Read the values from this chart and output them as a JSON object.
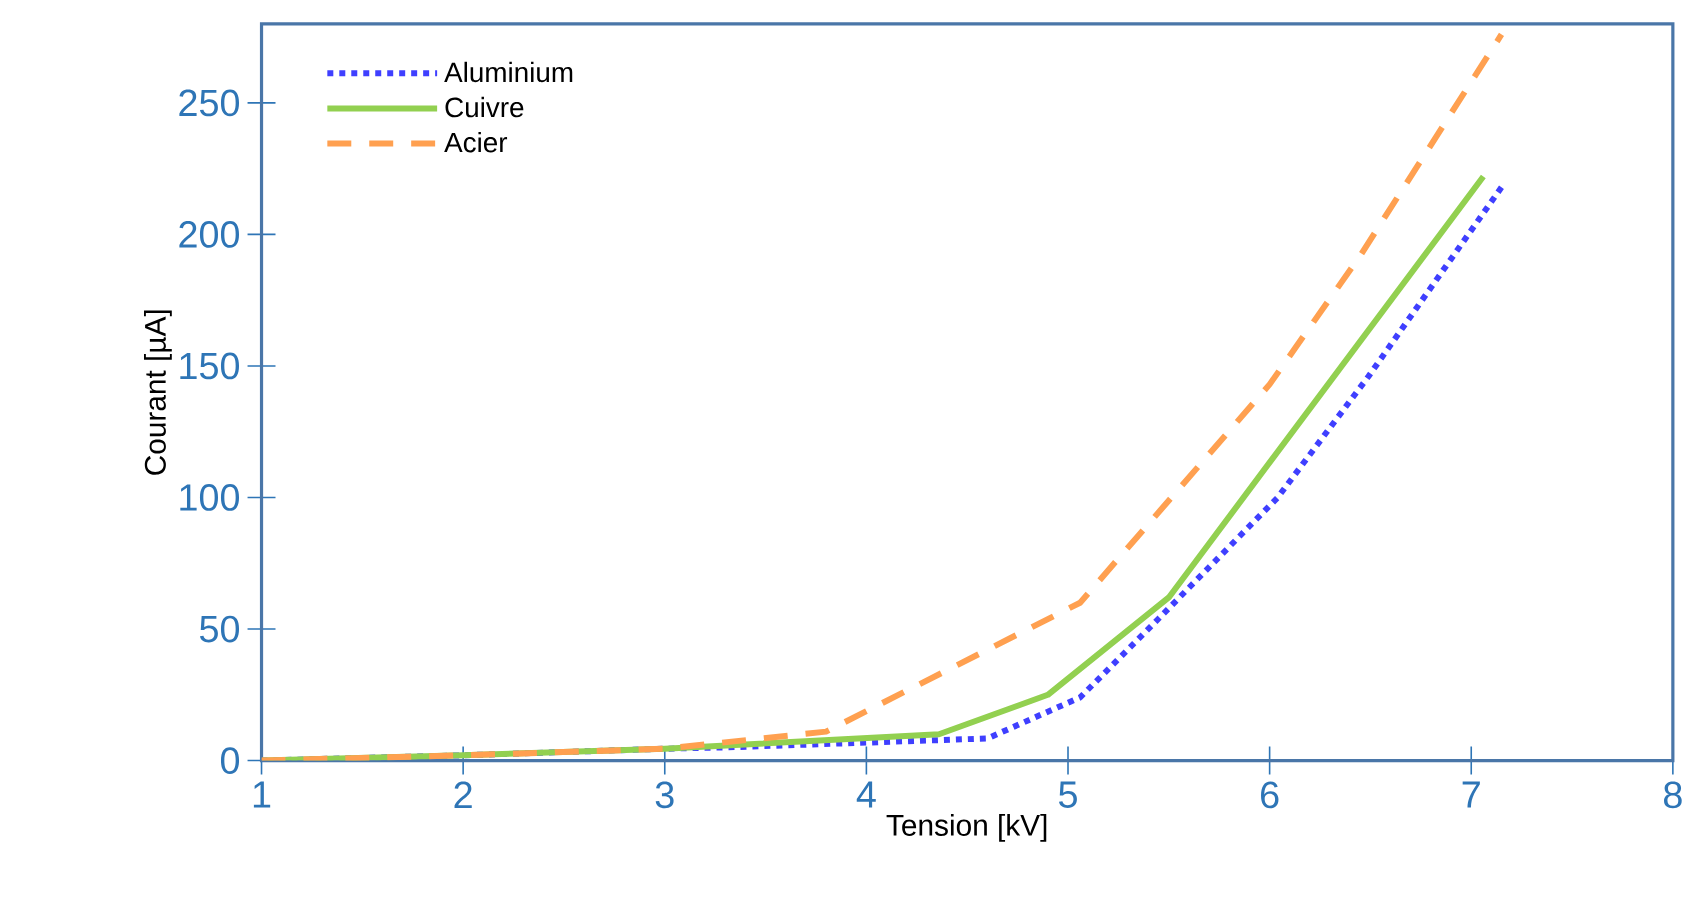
{
  "chart_data": {
    "type": "line",
    "xlabel": "Tension [kV]",
    "ylabel": "Courant [µA]",
    "xlim": [
      1,
      8
    ],
    "ylim": [
      0,
      280
    ],
    "xticks": [
      1,
      2,
      3,
      4,
      5,
      6,
      7,
      8
    ],
    "yticks": [
      0,
      50,
      100,
      150,
      200,
      250
    ],
    "grid": false,
    "legend": "top left",
    "marker": "none",
    "series": [
      {
        "name": "Aluminium",
        "color": "#3f3fff",
        "line_style": "dotted",
        "x": [
          1,
          2,
          3,
          3.3,
          4.6,
          5.06,
          5.45,
          6.04,
          6.49,
          7.16
        ],
        "values": [
          0,
          2,
          4.5,
          5,
          8.4,
          24,
          54,
          100,
          146,
          219
        ]
      },
      {
        "name": "Cuivre",
        "color": "#92d050",
        "line_style": "solid",
        "x": [
          1,
          2,
          3,
          4.36,
          4.9,
          5.5,
          7.06
        ],
        "values": [
          0,
          2,
          4.5,
          10,
          25,
          62,
          222
        ]
      },
      {
        "name": "Acier",
        "color": "#ffa050",
        "line_style": "dashed",
        "x": [
          1,
          2,
          3,
          3.8,
          5.06,
          6,
          6.45,
          7.15
        ],
        "values": [
          0,
          2,
          4.5,
          11,
          60,
          143,
          192,
          276
        ]
      }
    ]
  }
}
